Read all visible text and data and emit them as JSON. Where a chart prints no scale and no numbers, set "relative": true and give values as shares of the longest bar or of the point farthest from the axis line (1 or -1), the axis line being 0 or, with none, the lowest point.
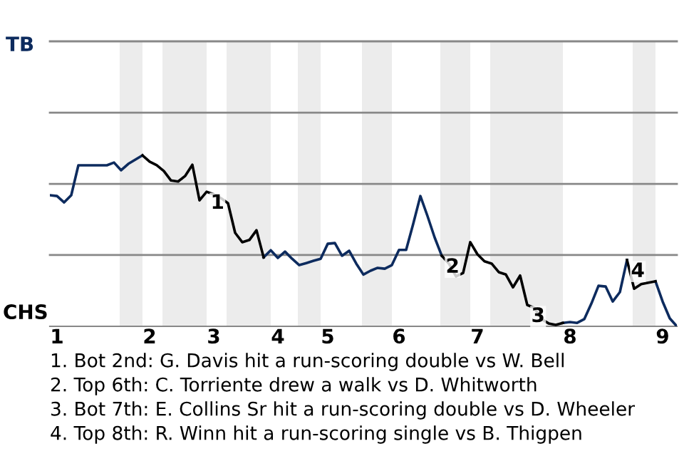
{
  "chart_data": {
    "type": "line",
    "relative": true,
    "legend": false,
    "categories": [
      null,
      "1",
      null,
      null,
      null,
      null,
      null,
      null,
      null,
      null,
      null,
      null,
      null,
      null,
      "2",
      null,
      null,
      null,
      null,
      null,
      null,
      null,
      null,
      "3",
      null,
      null,
      null,
      null,
      null,
      null,
      null,
      null,
      "4",
      null,
      null,
      null,
      null,
      null,
      null,
      "5",
      null,
      null,
      null,
      null,
      null,
      null,
      null,
      null,
      null,
      "6",
      null,
      null,
      null,
      null,
      null,
      null,
      null,
      null,
      null,
      null,
      "7",
      null,
      null,
      null,
      null,
      null,
      null,
      null,
      null,
      null,
      null,
      null,
      null,
      "8",
      null,
      null,
      null,
      null,
      null,
      null,
      null,
      null,
      null,
      null,
      null,
      null,
      "9",
      null,
      null
    ],
    "series": [
      {
        "color": "#0d2b5e",
        "values": [
          0.767,
          0.762,
          0.725,
          0.767,
          0.942,
          0.942,
          0.942,
          0.942,
          0.942,
          0.958,
          0.913,
          0.95,
          0.975,
          1,
          null,
          null,
          null,
          null,
          null,
          null,
          null,
          null,
          null,
          null,
          null,
          null,
          null,
          null,
          null,
          null,
          0.403,
          0.445,
          0.4,
          0.437,
          0.395,
          0.358,
          0.37,
          0.383,
          0.395,
          0.483,
          0.487,
          0.413,
          0.442,
          0.367,
          0.303,
          0.325,
          0.342,
          0.337,
          0.358,
          0.447,
          0.447,
          0.6,
          0.762,
          0.645,
          0.52,
          0.413,
          null,
          null,
          null,
          null,
          null,
          null,
          null,
          null,
          null,
          null,
          null,
          null,
          null,
          null,
          null,
          null,
          0.02,
          0.025,
          0.02,
          0.042,
          0.133,
          0.237,
          0.233,
          0.145,
          0.2,
          0.388,
          null,
          null,
          null,
          0.263,
          0.145,
          0.047,
          0
        ]
      },
      {
        "color": "#000000",
        "values": [
          null,
          null,
          null,
          null,
          null,
          null,
          null,
          null,
          null,
          null,
          null,
          null,
          null,
          1,
          0.963,
          0.942,
          0.908,
          0.853,
          0.847,
          0.88,
          0.945,
          0.737,
          0.787,
          0.772,
          0.75,
          0.72,
          0.547,
          0.492,
          0.505,
          0.562,
          0.403,
          null,
          null,
          null,
          null,
          null,
          null,
          null,
          null,
          null,
          null,
          null,
          null,
          null,
          null,
          null,
          null,
          null,
          null,
          null,
          null,
          null,
          null,
          null,
          null,
          0.413,
          0.367,
          0.292,
          0.312,
          0.492,
          0.422,
          0.38,
          0.367,
          0.317,
          0.303,
          0.228,
          0.297,
          0.125,
          0.108,
          0.042,
          0.017,
          0.008,
          0.02,
          null,
          null,
          null,
          null,
          null,
          null,
          null,
          null,
          0.388,
          0.22,
          0.247,
          0.255,
          0.263,
          null,
          null,
          null
        ]
      }
    ],
    "ref_lines": [
      {
        "axis": "y",
        "value": 0.417,
        "color": "#888888"
      },
      {
        "axis": "y",
        "value": 0.833,
        "color": "#888888"
      },
      {
        "axis": "y",
        "value": 1.25,
        "color": "#888888"
      },
      {
        "axis": "y",
        "value": 1.667,
        "color": "#888888"
      }
    ],
    "annotations": [
      "TB",
      "CHS",
      {
        "text": "1",
        "y": 0.787
      },
      {
        "text": "2",
        "y": 0.413
      },
      {
        "text": "3",
        "y": 0.125
      },
      {
        "text": "4",
        "y": 0.388
      },
      "1. Bot 2nd: G. Davis hit a run-scoring double vs W. Bell",
      "2. Top 6th: C. Torriente drew a walk vs D. Whitworth",
      "3. Bot 7th: E. Collins Sr hit a run-scoring double vs D. Wheeler",
      "4. Top 8th: R. Winn hit a run-scoring single vs B. Thigpen"
    ]
  }
}
